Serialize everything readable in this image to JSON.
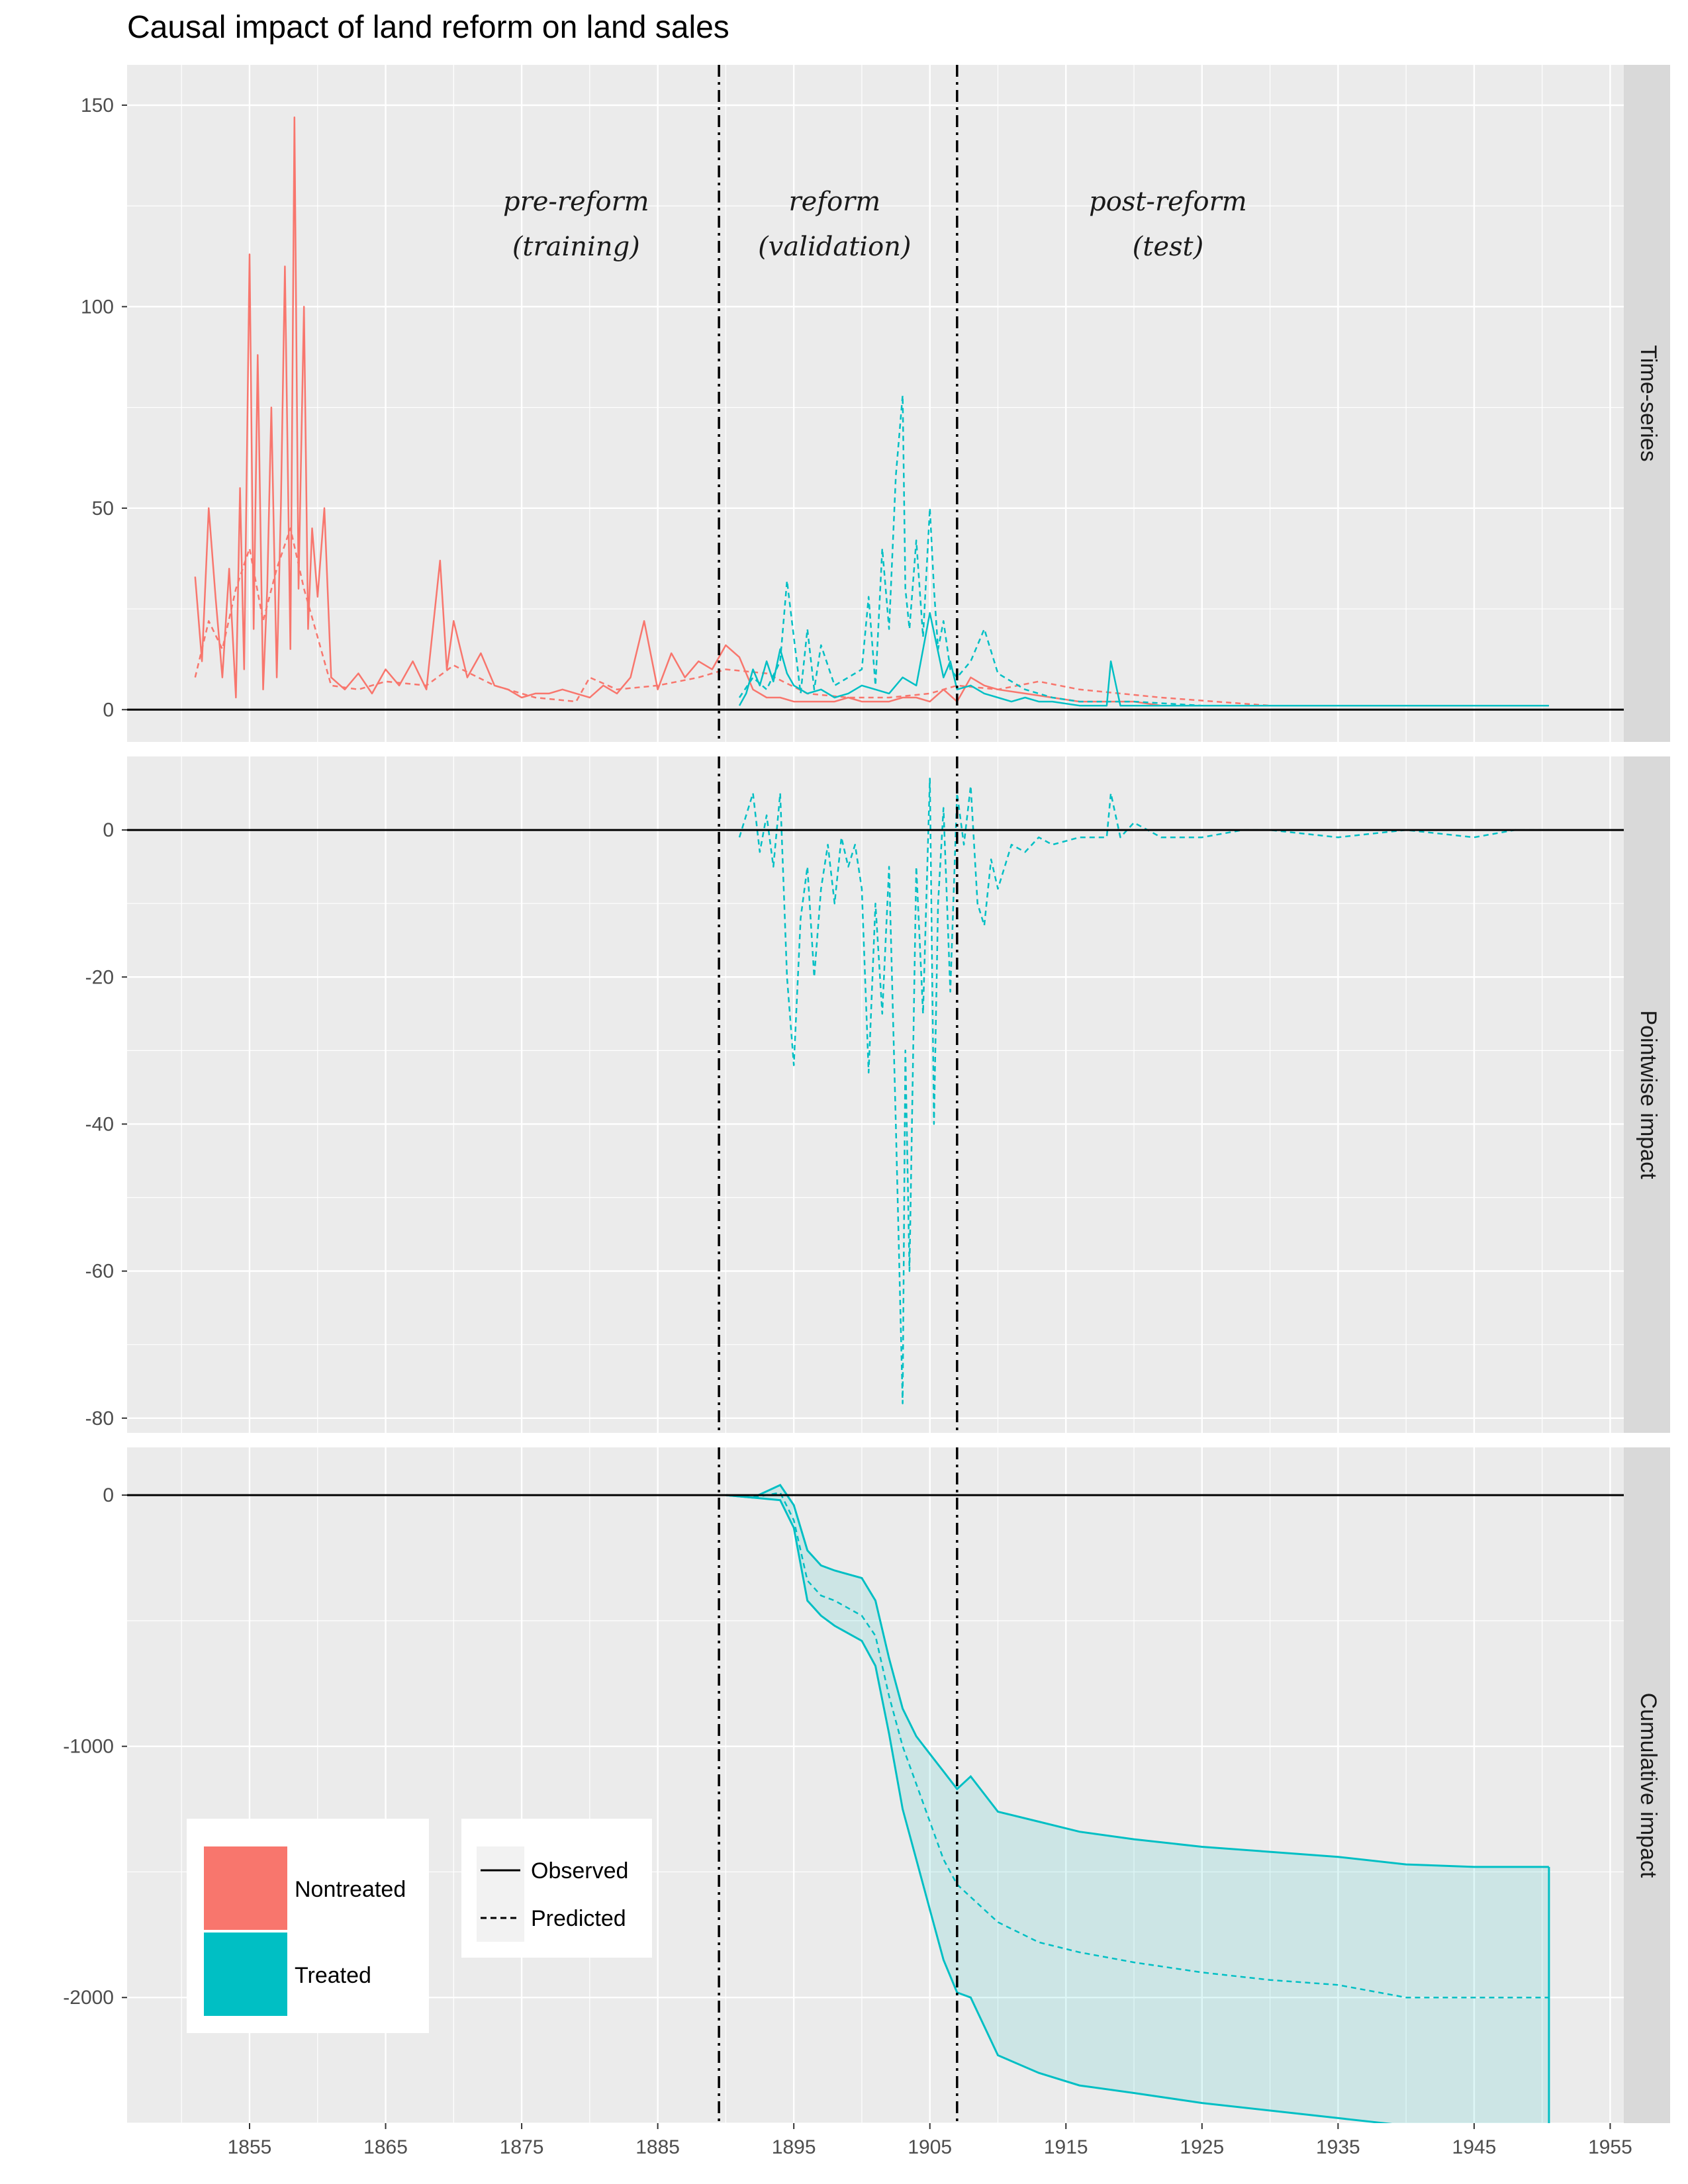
{
  "title": "Causal impact of land reform on land sales",
  "colors": {
    "nontreated": "#F8766D",
    "treated": "#00BFC4",
    "panel_bg": "#EBEBEB",
    "strip_bg": "#D9D9D9",
    "grid": "#FFFFFF"
  },
  "x_axis": {
    "ticks": [
      1855,
      1865,
      1875,
      1885,
      1895,
      1905,
      1915,
      1925,
      1935,
      1945,
      1955
    ],
    "xlim": [
      1846,
      1956
    ]
  },
  "reference_lines": [
    1889.5,
    1907
  ],
  "period_labels": [
    {
      "line1": "pre-reform",
      "line2": "(training)",
      "x": 1879
    },
    {
      "line1": "reform",
      "line2": "(validation)",
      "x": 1898
    },
    {
      "line1": "post-reform",
      "line2": "(test)",
      "x": 1922.5
    }
  ],
  "facets": [
    {
      "name": "Time-series",
      "ylim": [
        -8,
        160
      ],
      "yticks": [
        0,
        50,
        100,
        150
      ]
    },
    {
      "name": "Pointwise impact",
      "ylim": [
        -82,
        10
      ],
      "yticks": [
        0,
        -20,
        -40,
        -60,
        -80
      ]
    },
    {
      "name": "Cumulative impact",
      "ylim": [
        -2500,
        190
      ],
      "yticks": [
        0,
        -1000,
        -2000
      ]
    }
  ],
  "legend_group": {
    "items": [
      {
        "label": "Nontreated",
        "color": "#F8766D"
      },
      {
        "label": "Treated",
        "color": "#00BFC4"
      }
    ]
  },
  "legend_linetype": {
    "items": [
      {
        "label": "Observed",
        "dash": "solid"
      },
      {
        "label": "Predicted",
        "dash": "dashed"
      }
    ]
  },
  "chart_data": [
    {
      "type": "line",
      "facet": "Time-series",
      "series": [
        {
          "name": "Nontreated",
          "linetype": "Observed",
          "color": "#F8766D",
          "x": [
            1851,
            1851.5,
            1852,
            1852.5,
            1853,
            1853.5,
            1854,
            1854.3,
            1854.6,
            1855,
            1855.3,
            1855.6,
            1856,
            1856.3,
            1856.6,
            1857,
            1857.3,
            1857.6,
            1858,
            1858.3,
            1858.6,
            1859,
            1859.3,
            1859.6,
            1860,
            1860.5,
            1861,
            1862,
            1863,
            1864,
            1865,
            1866,
            1867,
            1868,
            1869,
            1869.5,
            1870,
            1871,
            1872,
            1873,
            1874,
            1875,
            1876,
            1877,
            1878,
            1879,
            1880,
            1881,
            1882,
            1883,
            1884,
            1885,
            1886,
            1887,
            1888,
            1889,
            1890,
            1891,
            1892,
            1893,
            1894,
            1895,
            1896,
            1897,
            1898,
            1899,
            1900,
            1901,
            1902,
            1903,
            1904,
            1905,
            1906,
            1907,
            1908,
            1909,
            1910,
            1912,
            1914,
            1916,
            1918,
            1920,
            1922,
            1925,
            1930,
            1935,
            1940,
            1945,
            1950.5
          ],
          "y": [
            33,
            12,
            50,
            28,
            8,
            35,
            3,
            55,
            10,
            113,
            20,
            88,
            5,
            30,
            75,
            8,
            50,
            110,
            15,
            147,
            30,
            100,
            20,
            45,
            28,
            50,
            8,
            5,
            9,
            4,
            10,
            6,
            12,
            5,
            37,
            10,
            22,
            8,
            14,
            6,
            5,
            3,
            4,
            4,
            5,
            4,
            3,
            6,
            4,
            8,
            22,
            5,
            14,
            8,
            12,
            10,
            16,
            13,
            5,
            3,
            3,
            2,
            2,
            2,
            2,
            3,
            2,
            2,
            2,
            3,
            3,
            2,
            5,
            2,
            8,
            6,
            5,
            4,
            3,
            2,
            2,
            2,
            1,
            1,
            1,
            1,
            1,
            1,
            1
          ]
        },
        {
          "name": "Nontreated",
          "linetype": "Predicted",
          "color": "#F8766D",
          "x": [
            1851,
            1852,
            1853,
            1854,
            1855,
            1856,
            1857,
            1858,
            1859,
            1860,
            1861,
            1863,
            1865,
            1868,
            1870,
            1873,
            1876,
            1879,
            1880,
            1882,
            1885,
            1888,
            1890,
            1893,
            1896,
            1899,
            1902,
            1905,
            1907,
            1910,
            1913,
            1916,
            1919,
            1922,
            1926,
            1930,
            1935,
            1940,
            1945,
            1950.5
          ],
          "y": [
            8,
            22,
            15,
            30,
            40,
            22,
            35,
            45,
            30,
            18,
            6,
            5,
            7,
            6,
            11,
            6,
            3,
            2,
            8,
            5,
            6,
            8,
            10,
            9,
            4,
            3,
            3,
            4,
            6,
            5,
            7,
            5,
            4,
            3,
            2,
            1,
            1,
            1,
            1,
            1
          ]
        },
        {
          "name": "Treated",
          "linetype": "Observed",
          "color": "#00BFC4",
          "x": [
            1891,
            1891.5,
            1892,
            1892.5,
            1893,
            1893.5,
            1894,
            1894.5,
            1895,
            1896,
            1897,
            1898,
            1899,
            1900,
            1901,
            1902,
            1903,
            1904,
            1905,
            1906,
            1906.5,
            1907,
            1908,
            1909,
            1910,
            1911,
            1912,
            1913,
            1914,
            1916,
            1918,
            1918.3,
            1919,
            1921,
            1925,
            1930,
            1935,
            1940,
            1945,
            1950.5
          ],
          "y": [
            1,
            4,
            10,
            6,
            12,
            7,
            15,
            9,
            6,
            4,
            5,
            3,
            4,
            6,
            5,
            4,
            8,
            6,
            24,
            8,
            12,
            5,
            6,
            4,
            3,
            2,
            3,
            2,
            2,
            1,
            1,
            12,
            1,
            1,
            1,
            1,
            1,
            1,
            1,
            1
          ]
        },
        {
          "name": "Treated",
          "linetype": "Predicted",
          "color": "#00BFC4",
          "x": [
            1891,
            1892,
            1893,
            1894,
            1894.5,
            1895,
            1895.5,
            1896,
            1896.5,
            1897,
            1898,
            1899,
            1900,
            1900.5,
            1901,
            1901.5,
            1902,
            1902.5,
            1903,
            1903.2,
            1903.5,
            1904,
            1904.5,
            1905,
            1905.3,
            1905.6,
            1906,
            1906.5,
            1907,
            1908,
            1909,
            1910,
            1911,
            1912,
            1914,
            1916,
            1918,
            1920,
            1925,
            1930,
            1935,
            1940,
            1945,
            1950.5
          ],
          "y": [
            3,
            8,
            5,
            12,
            32,
            18,
            4,
            20,
            5,
            16,
            6,
            8,
            10,
            28,
            6,
            40,
            20,
            58,
            78,
            30,
            20,
            42,
            18,
            50,
            30,
            15,
            22,
            10,
            8,
            12,
            20,
            9,
            7,
            5,
            3,
            2,
            2,
            2,
            1,
            1,
            1,
            1,
            1,
            1
          ]
        }
      ]
    },
    {
      "type": "line",
      "facet": "Pointwise impact",
      "series": [
        {
          "name": "Treated",
          "linetype": "Predicted",
          "color": "#00BFC4",
          "x": [
            1891,
            1892,
            1892.5,
            1893,
            1893.5,
            1894,
            1894.5,
            1895,
            1895.5,
            1896,
            1896.5,
            1897,
            1897.5,
            1898,
            1898.5,
            1899,
            1899.5,
            1900,
            1900.5,
            1901,
            1901.5,
            1902,
            1902.5,
            1903,
            1903.2,
            1903.5,
            1904,
            1904.5,
            1905,
            1905.3,
            1905.6,
            1906,
            1906.5,
            1907,
            1907.5,
            1908,
            1908.5,
            1909,
            1909.5,
            1910,
            1911,
            1912,
            1913,
            1914,
            1916,
            1918,
            1918.3,
            1919,
            1920,
            1922,
            1925,
            1928,
            1930,
            1935,
            1940,
            1945,
            1948,
            1950.5
          ],
          "y": [
            -1,
            5,
            -3,
            2,
            -5,
            5,
            -20,
            -32,
            -12,
            -5,
            -20,
            -8,
            -2,
            -10,
            -1,
            -5,
            -2,
            -8,
            -33,
            -10,
            -25,
            -5,
            -40,
            -78,
            -30,
            -60,
            -5,
            -25,
            7,
            -40,
            -10,
            3,
            -22,
            5,
            -2,
            6,
            -10,
            -13,
            -4,
            -8,
            -2,
            -3,
            -1,
            -2,
            -1,
            -1,
            5,
            -1,
            1,
            -1,
            -1,
            0,
            0,
            -1,
            0,
            -1,
            0,
            0
          ]
        }
      ]
    },
    {
      "type": "area",
      "facet": "Cumulative impact",
      "series": [
        {
          "name": "Treated",
          "role": "predicted_mean",
          "linetype": "Predicted",
          "color": "#00BFC4",
          "x": [
            1890,
            1892,
            1894,
            1895,
            1896,
            1897,
            1898,
            1900,
            1901,
            1902,
            1903,
            1904,
            1905,
            1906,
            1907,
            1908,
            1910,
            1913,
            1916,
            1920,
            1925,
            1930,
            1935,
            1940,
            1945,
            1950.5
          ],
          "y": [
            0,
            -10,
            10,
            -100,
            -340,
            -400,
            -420,
            -480,
            -560,
            -800,
            -1000,
            -1150,
            -1300,
            -1450,
            -1550,
            -1600,
            -1700,
            -1780,
            -1820,
            -1860,
            -1900,
            -1930,
            -1950,
            -2000,
            -2000,
            -2000
          ]
        },
        {
          "name": "Treated",
          "role": "band_upper",
          "color": "#00BFC4",
          "x": [
            1890,
            1892,
            1894,
            1895,
            1896,
            1897,
            1898,
            1900,
            1901,
            1902,
            1903,
            1904,
            1905,
            1906,
            1907,
            1908,
            1910,
            1913,
            1916,
            1920,
            1925,
            1930,
            1935,
            1940,
            1945,
            1950.5
          ],
          "y": [
            0,
            -10,
            40,
            -40,
            -220,
            -280,
            -300,
            -330,
            -420,
            -650,
            -850,
            -960,
            -1030,
            -1100,
            -1170,
            -1120,
            -1260,
            -1300,
            -1340,
            -1370,
            -1400,
            -1420,
            -1440,
            -1470,
            -1480,
            -1480
          ]
        },
        {
          "name": "Treated",
          "role": "band_lower",
          "color": "#00BFC4",
          "x": [
            1890,
            1892,
            1894,
            1895,
            1896,
            1897,
            1898,
            1900,
            1901,
            1902,
            1903,
            1904,
            1905,
            1906,
            1907,
            1908,
            1910,
            1913,
            1916,
            1920,
            1925,
            1930,
            1935,
            1940,
            1945,
            1950.5
          ],
          "y": [
            0,
            -10,
            -20,
            -130,
            -420,
            -480,
            -520,
            -580,
            -680,
            -950,
            -1250,
            -1450,
            -1650,
            -1850,
            -1980,
            -2000,
            -2230,
            -2300,
            -2350,
            -2380,
            -2420,
            -2450,
            -2480,
            -2510,
            -2520,
            -2520
          ]
        }
      ]
    }
  ]
}
